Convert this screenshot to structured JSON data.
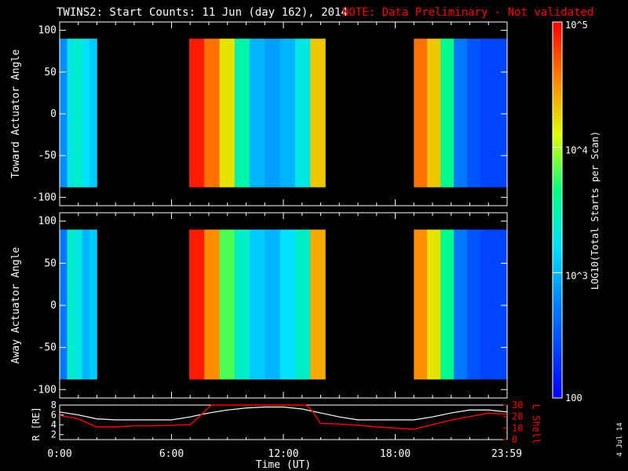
{
  "header": {
    "title": "TWINS2: Start Counts: 11 Jun (day 162), 2014",
    "note": "NOTE: Data Preliminary - Not validated"
  },
  "colors": {
    "background": "#000000",
    "frame": "#ffffff",
    "note": "#ff0000",
    "r_line": "#ffffff",
    "lshell_line": "#ff0000"
  },
  "chart_data": [
    {
      "type": "heatmap",
      "ylabel": "Toward Actuator Angle",
      "ylim": [
        -110,
        110
      ],
      "yticks": [
        "100",
        "50",
        "0",
        "-50",
        "-100"
      ],
      "xlim_hours": [
        0,
        24
      ],
      "data_bins": [
        {
          "start_hour": 0.0,
          "end_hour": 2.0,
          "angle_range": [
            -88,
            90
          ],
          "log_counts": [
            2.8,
            3.3,
            3.4,
            3.2,
            3.1
          ]
        },
        {
          "start_hour": 6.95,
          "end_hour": 14.25,
          "angle_range": [
            -88,
            90
          ],
          "log_counts": [
            4.9,
            4.6,
            4.2,
            3.5,
            3.0,
            2.9,
            3.0,
            3.3,
            4.3
          ]
        },
        {
          "start_hour": 19.0,
          "end_hour": 24.0,
          "angle_range": [
            -88,
            90
          ],
          "log_counts": [
            4.6,
            4.3,
            3.6,
            2.7,
            2.5,
            2.4,
            2.4
          ]
        }
      ]
    },
    {
      "type": "heatmap",
      "ylabel": "Away Actuator Angle",
      "ylim": [
        -110,
        110
      ],
      "yticks": [
        "100",
        "50",
        "0",
        "-50",
        "-100"
      ],
      "xlim_hours": [
        0,
        24
      ],
      "data_bins": [
        {
          "start_hour": 0.0,
          "end_hour": 2.0,
          "angle_range": [
            -88,
            90
          ],
          "log_counts": [
            2.7,
            3.4,
            3.3,
            3.0,
            3.1
          ]
        },
        {
          "start_hour": 6.95,
          "end_hour": 14.25,
          "angle_range": [
            -88,
            90
          ],
          "log_counts": [
            4.9,
            4.5,
            3.8,
            3.4,
            3.1,
            3.0,
            3.2,
            3.4,
            4.4
          ]
        },
        {
          "start_hour": 19.0,
          "end_hour": 24.0,
          "angle_range": [
            -88,
            90
          ],
          "log_counts": [
            4.5,
            4.2,
            3.6,
            2.7,
            2.5,
            2.4,
            2.4
          ]
        }
      ]
    },
    {
      "type": "line",
      "ylabel_left": "R [RE]",
      "ylabel_right": "L Shell",
      "xlabel": "Time (UT)",
      "xticks": [
        "0:00",
        "6:00",
        "12:00",
        "18:00",
        "23:59"
      ],
      "xtick_hours": [
        0,
        6,
        12,
        18,
        23.98
      ],
      "yticks_left": [
        "8",
        "6",
        "4",
        "2"
      ],
      "ylim_left": [
        1,
        8
      ],
      "yticks_right": [
        "30",
        "20",
        "10",
        "0"
      ],
      "ylim_right": [
        0,
        30
      ],
      "series": [
        {
          "axis": "left",
          "x": [
            0,
            1,
            2,
            3,
            4,
            5,
            6,
            7,
            8,
            9,
            10,
            11,
            12,
            13,
            14,
            15,
            16,
            17,
            18,
            19,
            20,
            21,
            22,
            23,
            24
          ],
          "y": [
            6.6,
            6.0,
            5.2,
            5.0,
            5.0,
            5.0,
            5.0,
            5.6,
            6.4,
            7.0,
            7.4,
            7.6,
            7.6,
            7.2,
            6.4,
            5.6,
            5.0,
            5.0,
            5.0,
            5.0,
            5.6,
            6.4,
            7.0,
            7.0,
            6.6
          ]
        },
        {
          "axis": "right",
          "x": [
            0,
            1,
            2,
            3,
            4,
            5,
            6,
            7,
            7.5,
            8,
            8.15,
            13.2,
            13.5,
            14,
            15,
            16,
            17,
            18,
            19,
            20,
            21,
            22,
            23,
            24
          ],
          "y": [
            21,
            18,
            11,
            11,
            12,
            12,
            12.5,
            13,
            20,
            28,
            31,
            31,
            26,
            14,
            13.5,
            12.5,
            11,
            10,
            9,
            13,
            17,
            20,
            23,
            22
          ]
        }
      ]
    }
  ],
  "colorbar": {
    "label": "LOG10(Total Starts per Scan)",
    "tick_labels": [
      "10^5",
      "10^4",
      "10^3",
      "100"
    ],
    "tick_logs": [
      5,
      4,
      3,
      2
    ],
    "range_log": [
      2,
      5
    ]
  },
  "footer": {
    "date_stamp": "4 Jul 14"
  }
}
